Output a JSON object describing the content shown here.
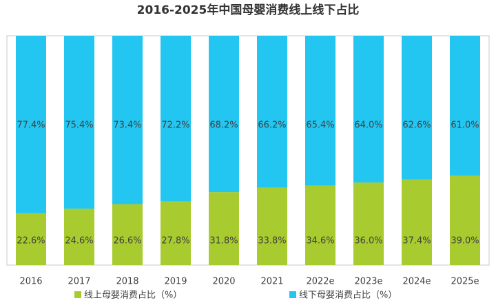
{
  "chart_data": {
    "type": "stacked_bar",
    "title": "2016-2025年中国母婴消费线上线下占比",
    "categories": [
      "2016",
      "2017",
      "2018",
      "2019",
      "2020",
      "2021",
      "2022e",
      "2023e",
      "2024e",
      "2025e"
    ],
    "series": [
      {
        "name": "线上母婴消费占比（%）",
        "color": "#a8cb2f",
        "values": [
          22.6,
          24.6,
          26.6,
          27.8,
          31.8,
          33.8,
          34.6,
          36.0,
          37.4,
          39.0
        ],
        "value_labels": [
          "22.6%",
          "24.6%",
          "26.6%",
          "27.8%",
          "31.8%",
          "33.8%",
          "34.6%",
          "36.0%",
          "37.4%",
          "39.0%"
        ]
      },
      {
        "name": "线下母婴消费占比（%）",
        "color": "#22c6f1",
        "values": [
          77.4,
          75.4,
          73.4,
          72.2,
          68.2,
          66.2,
          65.4,
          64.0,
          62.6,
          61.0
        ],
        "value_labels": [
          "77.4%",
          "75.4%",
          "73.4%",
          "72.2%",
          "68.2%",
          "66.2%",
          "65.4%",
          "64.0%",
          "62.6%",
          "61.0%"
        ]
      }
    ],
    "ylim": [
      0,
      100
    ]
  }
}
